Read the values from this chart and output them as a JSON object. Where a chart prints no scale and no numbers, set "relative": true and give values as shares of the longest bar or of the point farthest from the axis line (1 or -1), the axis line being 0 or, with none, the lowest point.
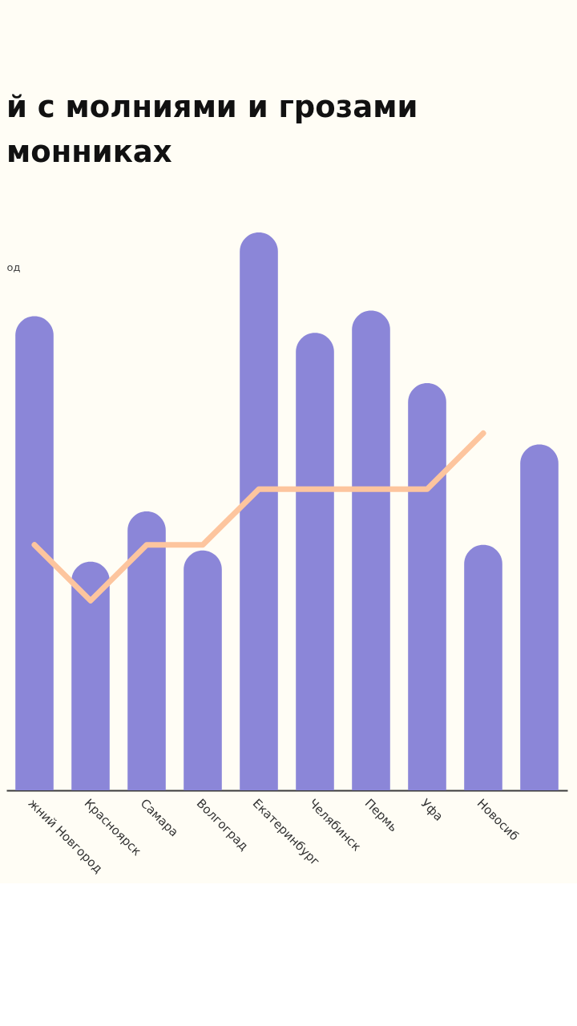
{
  "chart_data": {
    "type": "bar",
    "title": "й с молниями и грозами\nмонниках",
    "ylabel": "од",
    "relative": true,
    "tick_labels": "x",
    "categories": [
      "жний Новгород",
      "Красноярск",
      "Самара",
      "Волгоград",
      "Екатеринбург",
      "Челябинск",
      "Пермь",
      "Уфа",
      "Новосиб",
      null
    ],
    "series": [
      {
        "color": "#8b86d8",
        "values": [
          0.85,
          0.41,
          0.5,
          0.43,
          1,
          0.82,
          0.86,
          0.73,
          0.44,
          0.62
        ]
      },
      {
        "type": "line",
        "color": "#fdc59e",
        "values": [
          0.44,
          0.34,
          0.44,
          0.44,
          0.54,
          0.54,
          0.54,
          0.54,
          0.64,
          null
        ]
      }
    ]
  }
}
